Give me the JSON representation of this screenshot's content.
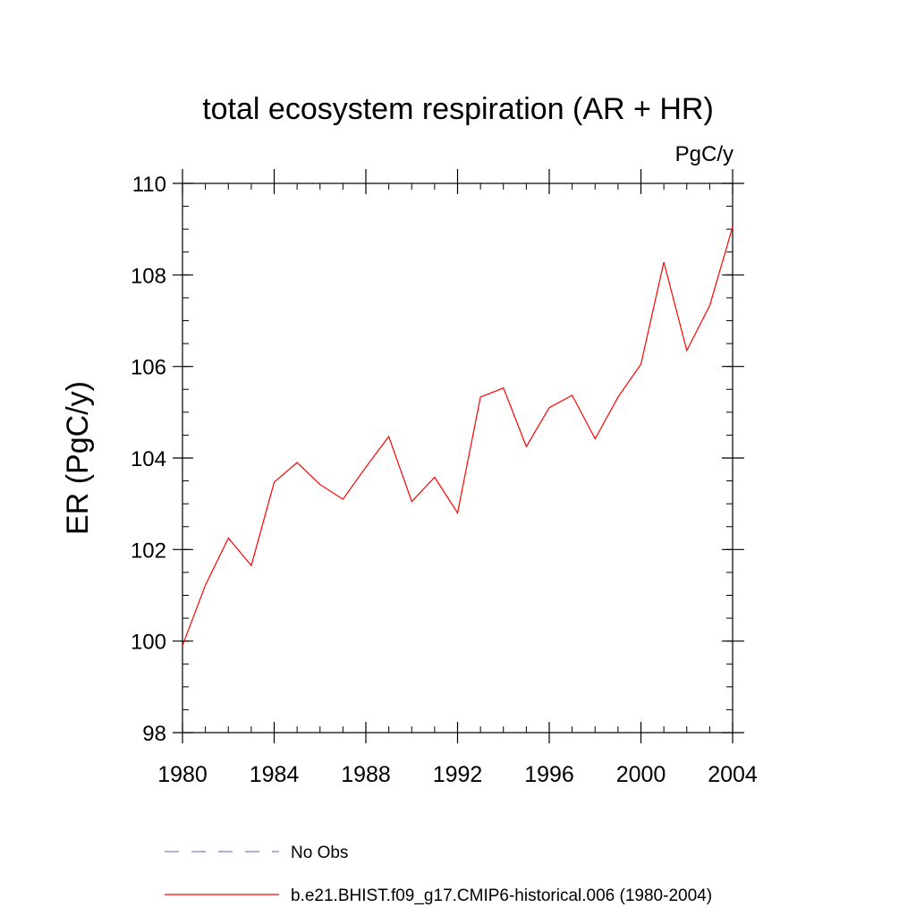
{
  "chart_data": {
    "type": "line",
    "title": "total ecosystem respiration (AR + HR)",
    "units_label": "PgC/y",
    "ylabel": "ER  (PgC/y)",
    "xlabel": "",
    "xlim": [
      1980,
      2004
    ],
    "ylim": [
      98,
      110
    ],
    "x_ticks": [
      1980,
      1984,
      1988,
      1992,
      1996,
      2000,
      2004
    ],
    "y_ticks": [
      98,
      100,
      102,
      104,
      106,
      108,
      110
    ],
    "x_minor_step": 1,
    "y_minor_step": 0.5,
    "grid": false,
    "series": [
      {
        "name": "No Obs",
        "color": "#8080c0",
        "style": "dashed",
        "x": [],
        "values": []
      },
      {
        "name": "b.e21.BHIST.f09_g17.CMIP6-historical.006 (1980-2004)",
        "color": "#ff0000",
        "style": "solid",
        "x": [
          1980,
          1981,
          1982,
          1983,
          1984,
          1985,
          1986,
          1987,
          1988,
          1989,
          1990,
          1991,
          1992,
          1993,
          1994,
          1995,
          1996,
          1997,
          1998,
          1999,
          2000,
          2001,
          2002,
          2003,
          2004
        ],
        "values": [
          99.9,
          101.22,
          102.25,
          101.65,
          103.47,
          103.9,
          103.42,
          103.1,
          103.8,
          104.47,
          103.05,
          103.58,
          102.8,
          105.33,
          105.53,
          104.25,
          105.1,
          105.37,
          104.42,
          105.33,
          106.05,
          108.28,
          106.35,
          107.33,
          109.05
        ]
      }
    ],
    "legend_position": "bottom"
  }
}
